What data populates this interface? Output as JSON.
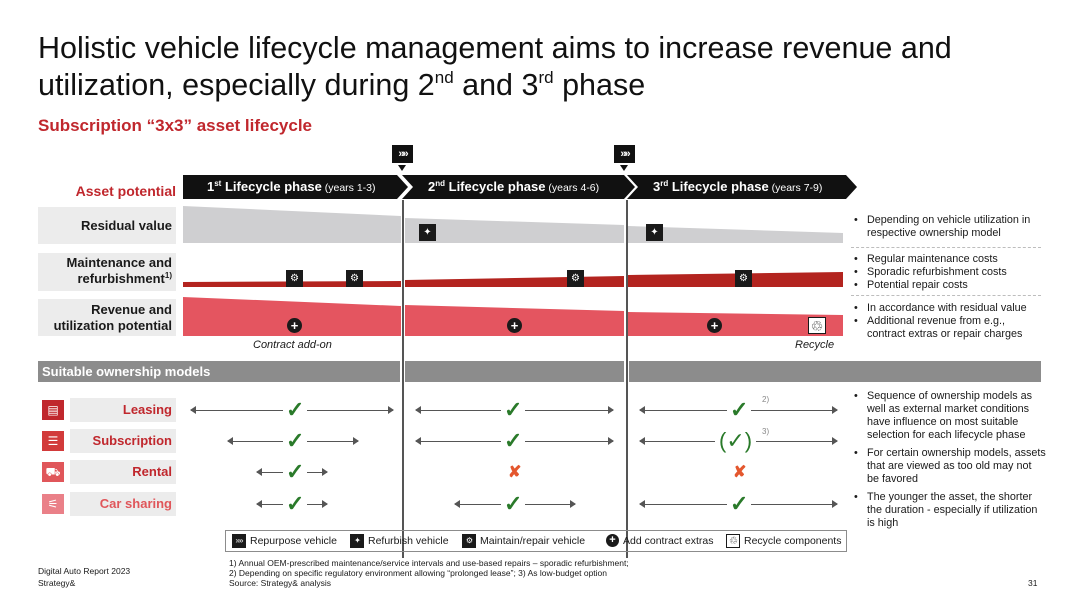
{
  "title": {
    "part1": "Holistic vehicle lifecycle management aims to increase revenue and utilization, especially during 2",
    "sup1": "nd",
    "part2": " and 3",
    "sup2": "rd",
    "part3": " phase"
  },
  "subtitle": "Subscription “3x3” asset lifecycle",
  "asset_potential_label": "Asset potential",
  "phases": [
    {
      "num": "1",
      "ord": "st",
      "label": " Lifecycle phase",
      "years": " (years 1-3)"
    },
    {
      "num": "2",
      "ord": "nd",
      "label": " Lifecycle phase",
      "years": " (years 4-6)"
    },
    {
      "num": "3",
      "ord": "rd",
      "label": " Lifecycle phase",
      "years": " (years 7-9)"
    }
  ],
  "marker_glyph": "»»",
  "rows": {
    "residual": {
      "label": "Residual value",
      "notes": [
        "Depending on vehicle utilization in respective ownership model"
      ]
    },
    "maintenance": {
      "label_line1": "Maintenance and",
      "label_line2": "refurbishment",
      "label_sup": "1)",
      "notes": [
        "Regular maintenance costs",
        "Sporadic refurbishment costs",
        "Potential repair costs"
      ]
    },
    "revenue": {
      "label_line1": "Revenue and",
      "label_line2": "utilization potential",
      "notes": [
        "In accordance with residual value",
        "Additional revenue from e.g., contract extras or repair charges"
      ]
    }
  },
  "contract_addon_label": "Contract add-on",
  "recycle_label": "Recycle",
  "ownership_header": "Suitable ownership models",
  "ownership_models": [
    {
      "name": "Leasing",
      "icon": "document-icon",
      "color": "#c0272d",
      "p1": "check",
      "p2": "check",
      "p3": "check",
      "p3_ref": "2)"
    },
    {
      "name": "Subscription",
      "icon": "list-icon",
      "color": "#d23a3a",
      "p1": "check",
      "p2": "check",
      "p3": "(✓)",
      "p3_ref": "3)"
    },
    {
      "name": "Rental",
      "icon": "car-icon",
      "color": "#e0565a",
      "p1": "check",
      "p2": "cross",
      "p3": "cross",
      "p3_ref": ""
    },
    {
      "name": "Car sharing",
      "icon": "share-icon",
      "color": "#ea8088",
      "p1": "check",
      "p2": "check",
      "p3": "check",
      "p3_ref": ""
    }
  ],
  "ownership_notes": [
    "Sequence of ownership models as well as external market conditions have influence on most suitable selection for each lifecycle phase",
    "For certain ownership models, assets that are viewed as too old may not be favored",
    "The younger the asset, the shorter the duration - especially if utilization is high"
  ],
  "glyphs": {
    "check": "✓",
    "cross": "✘",
    "plus": "+",
    "recycle": "♲",
    "refurbish": "✦",
    "maintain": "⚙"
  },
  "legend": [
    {
      "icon": "repurpose-icon",
      "label": "Repurpose vehicle"
    },
    {
      "icon": "refurbish-icon",
      "label": "Refurbish vehicle"
    },
    {
      "icon": "maintain-icon",
      "label": "Maintain/repair vehicle"
    },
    {
      "icon": "add-extras-icon",
      "label": "Add contract extras"
    },
    {
      "icon": "recycle-icon",
      "label": "Recycle components"
    }
  ],
  "footnotes": [
    "1) Annual OEM-prescribed maintenance/service intervals and use-based repairs – sporadic refurbishment;",
    "2) Depending on specific regulatory environment allowing “prolonged lease”; 3) As low-budget option",
    "Source: Strategy& analysis"
  ],
  "report_name": "Digital Auto Report 2023",
  "brand": "Strategy&",
  "page_number": "31",
  "colors": {
    "accent": "#c0272d",
    "residual_fill": "#cfcfd1",
    "maintenance_fill": "#b3241f",
    "revenue_fill": "#e45560",
    "check": "#2a7a2a",
    "cross": "#e4572e"
  }
}
